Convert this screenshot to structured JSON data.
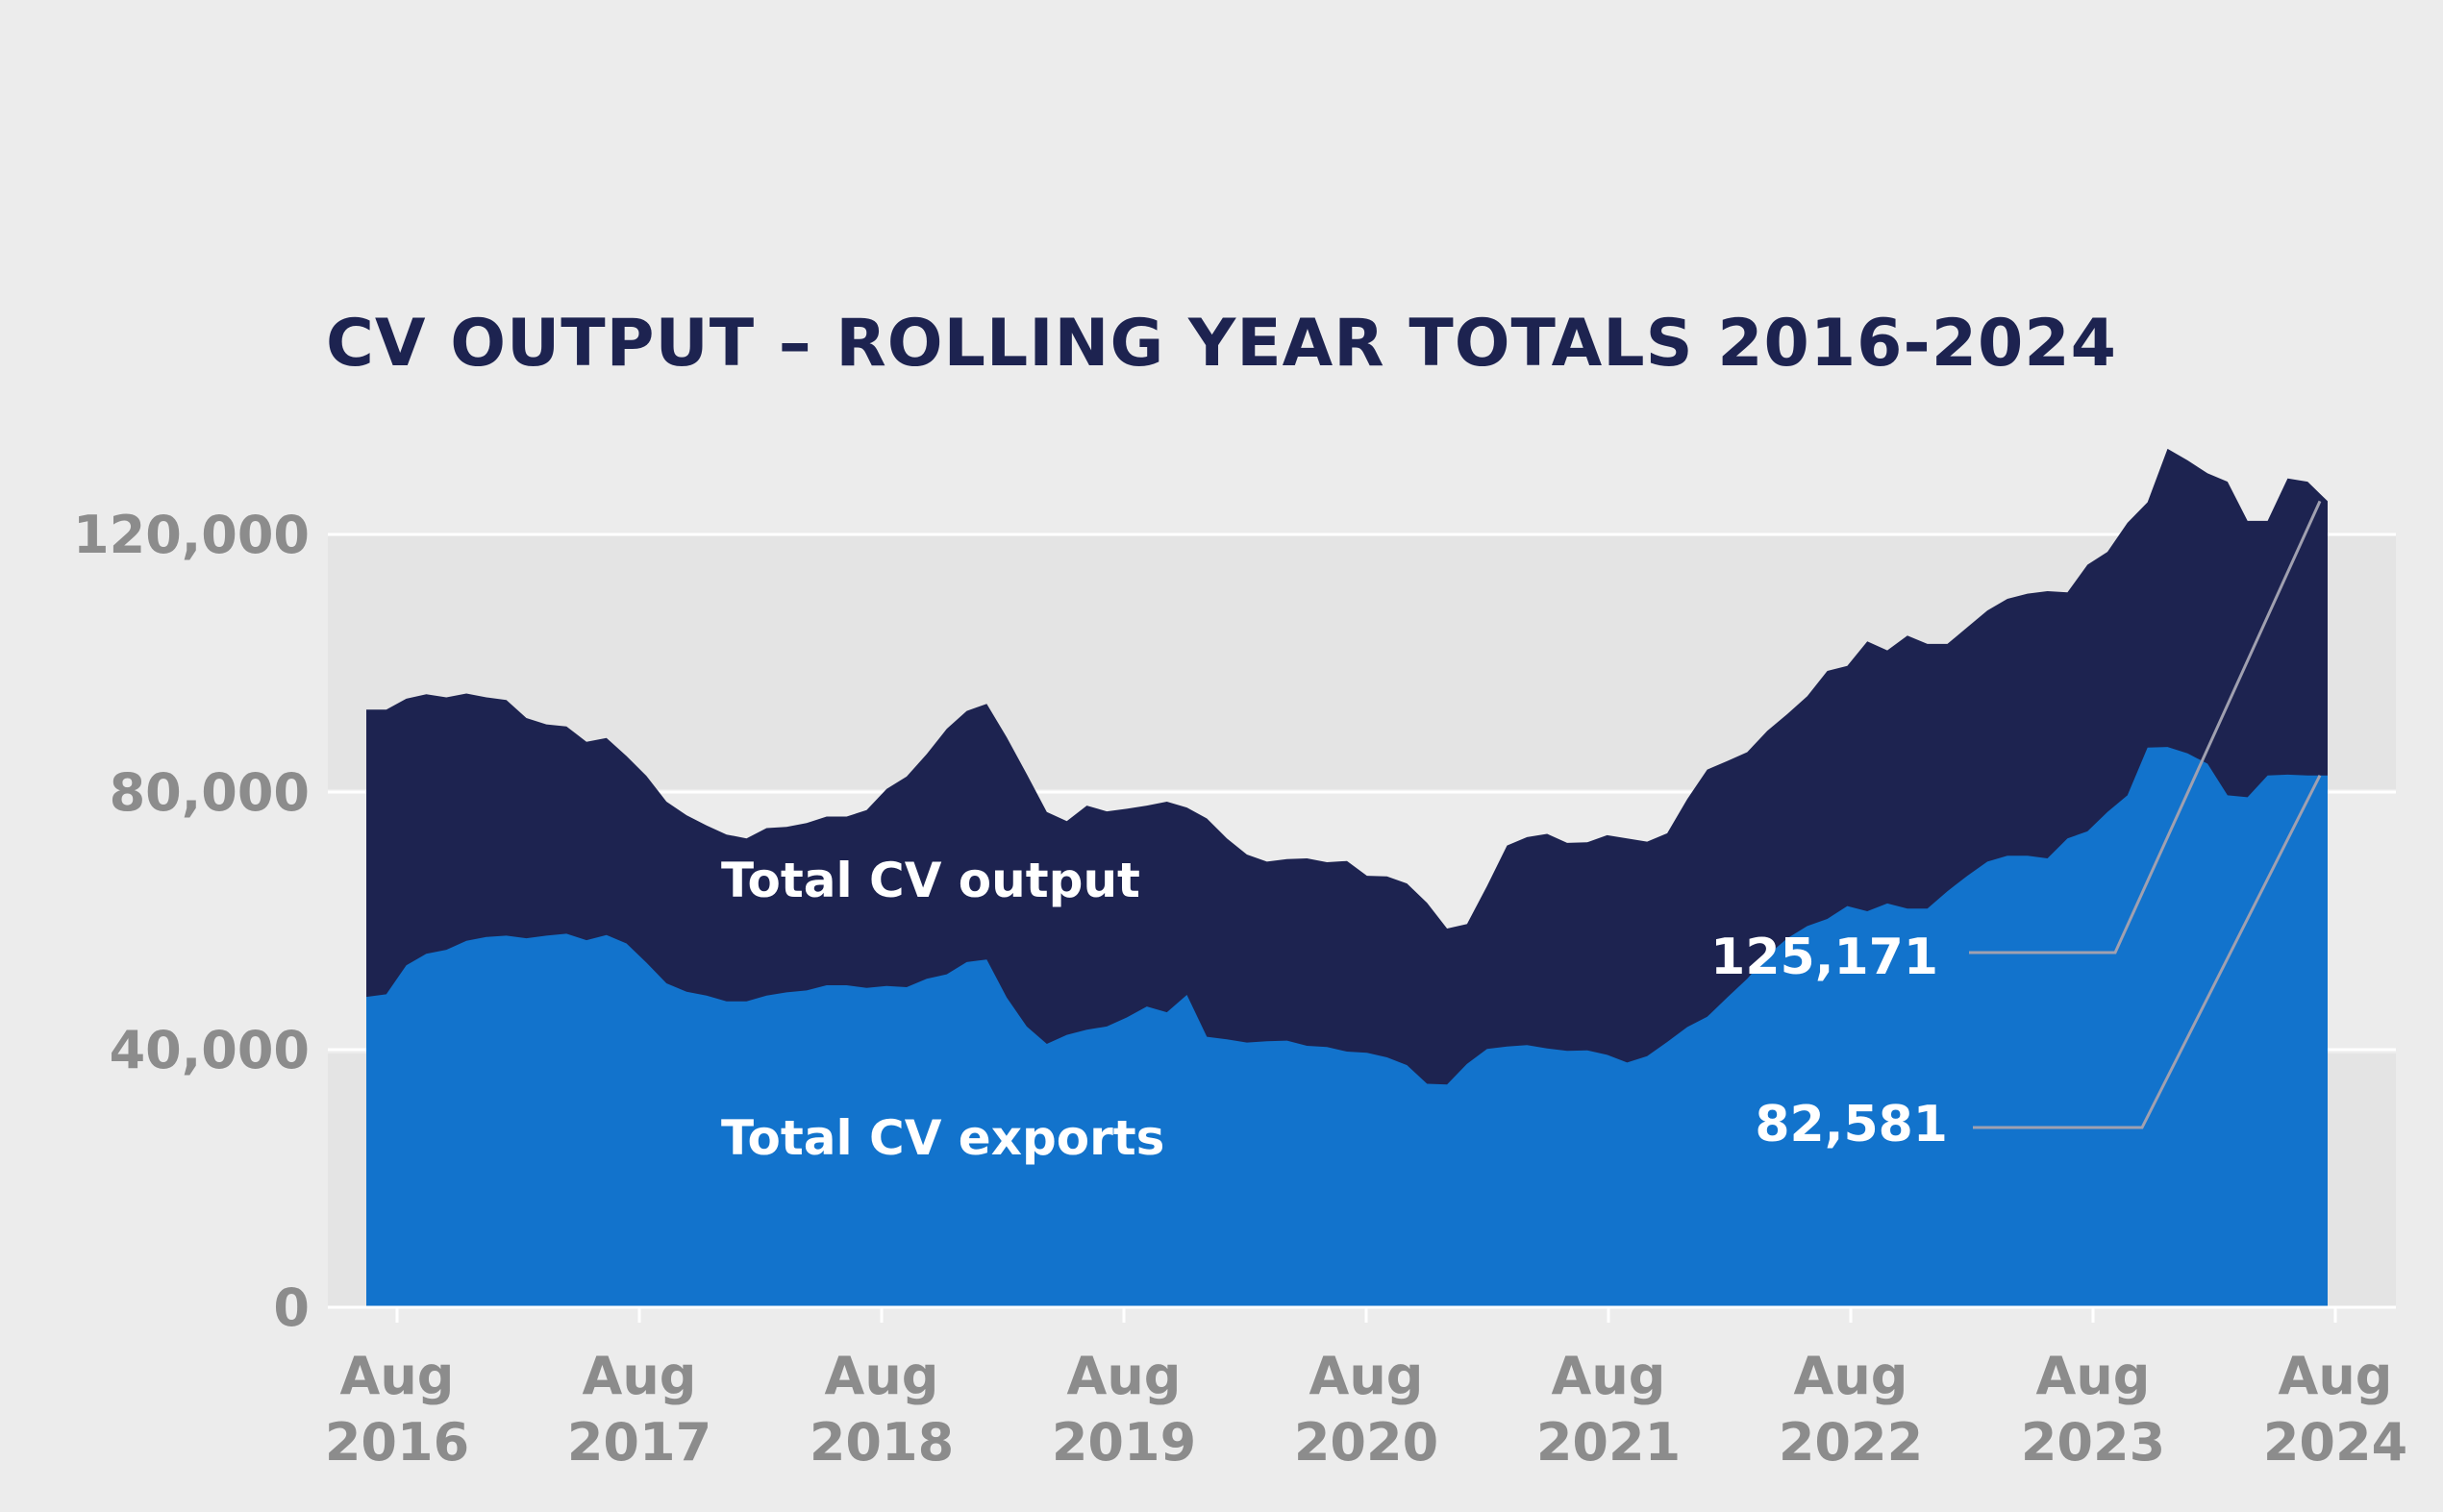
{
  "chart_data": {
    "type": "area",
    "title": "CV OUTPUT – ROLLING YEAR TOTALS 2016-2024",
    "xlabel": "",
    "ylabel": "",
    "ylim": [
      0,
      120000
    ],
    "y_ticks": [
      "0",
      "40,000",
      "80,000",
      "120,000"
    ],
    "y_tick_values": [
      0,
      40000,
      80000,
      120000
    ],
    "x_ticks": [
      {
        "month": "Aug",
        "year": "2016"
      },
      {
        "month": "Aug",
        "year": "2017"
      },
      {
        "month": "Aug",
        "year": "2018"
      },
      {
        "month": "Aug",
        "year": "2019"
      },
      {
        "month": "Aug",
        "year": "2020"
      },
      {
        "month": "Aug",
        "year": "2021"
      },
      {
        "month": "Aug",
        "year": "2022"
      },
      {
        "month": "Aug",
        "year": "2023"
      },
      {
        "month": "Aug",
        "year": "2024"
      }
    ],
    "x_start": "2016-07",
    "x_end": "2024-07",
    "grid": true,
    "series": [
      {
        "name": "Total CV output",
        "color": "#1d2350",
        "values": [
          92800,
          92800,
          94500,
          95200,
          94700,
          95300,
          94700,
          94300,
          91500,
          90500,
          90200,
          87800,
          88400,
          85600,
          82500,
          78500,
          76400,
          74800,
          73400,
          72800,
          74400,
          74600,
          75200,
          76200,
          76200,
          77200,
          80500,
          82400,
          85900,
          89800,
          92600,
          93700,
          88500,
          82800,
          76900,
          75500,
          77900,
          77000,
          77400,
          77900,
          78500,
          77600,
          75900,
          72800,
          70300,
          69200,
          69600,
          69700,
          69100,
          69300,
          67000,
          66900,
          65800,
          62800,
          58800,
          59500,
          65400,
          71700,
          73000,
          73500,
          72100,
          72200,
          73300,
          72800,
          72300,
          73600,
          78900,
          83500,
          84800,
          86200,
          89500,
          92100,
          94900,
          98800,
          99600,
          103400,
          102000,
          104300,
          103000,
          103000,
          105600,
          108200,
          110000,
          110800,
          111200,
          111000,
          115300,
          117300,
          121800,
          125000,
          133300,
          131500,
          129500,
          128200,
          122100,
          122100,
          128700,
          128200,
          125171
        ],
        "label_position": "mid"
      },
      {
        "name": "Total CV exports",
        "color": "#1273cc",
        "values": [
          48200,
          48600,
          53100,
          54900,
          55500,
          56900,
          57500,
          57700,
          57300,
          57700,
          58000,
          57000,
          57800,
          56500,
          53500,
          50300,
          49000,
          48400,
          47500,
          47500,
          48400,
          48900,
          49200,
          50000,
          50000,
          49600,
          49900,
          49700,
          51000,
          51700,
          53600,
          54000,
          48100,
          43600,
          40900,
          42300,
          43100,
          43600,
          45000,
          46700,
          45800,
          48500,
          42000,
          41600,
          41100,
          41300,
          41400,
          40600,
          40400,
          39700,
          39500,
          38800,
          37600,
          34700,
          34600,
          37800,
          40100,
          40500,
          40700,
          40200,
          39800,
          39900,
          39200,
          38000,
          39000,
          41200,
          43500,
          45100,
          48100,
          51000,
          54600,
          57300,
          59200,
          60300,
          62300,
          61500,
          62700,
          61900,
          61900,
          64600,
          67000,
          69200,
          70100,
          70100,
          69700,
          72800,
          73900,
          76900,
          79500,
          86900,
          87000,
          86000,
          84400,
          79500,
          79200,
          82581,
          82700,
          82581,
          82581
        ],
        "label_position": "low"
      }
    ],
    "annotations": [
      {
        "text": "Total CV output",
        "series": "Total CV output"
      },
      {
        "text": "Total CV exports",
        "series": "Total CV exports"
      },
      {
        "text": "125,171",
        "series": "Total CV output",
        "value": 125171
      },
      {
        "text": "82,581",
        "series": "Total CV exports",
        "value": 82581
      }
    ]
  }
}
